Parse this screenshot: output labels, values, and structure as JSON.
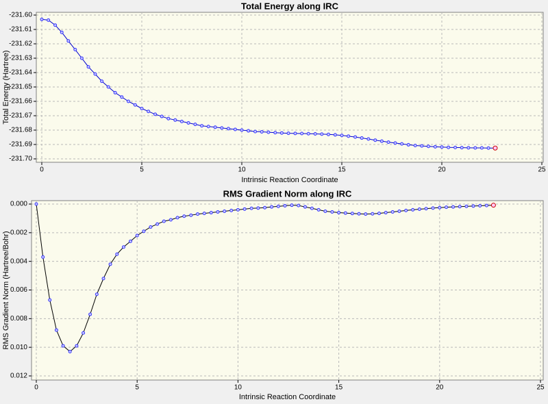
{
  "chart_data": [
    {
      "type": "line",
      "title": "Total Energy along IRC",
      "x_label": "Intrinsic Reaction Coordinate",
      "y_label": "Total Energy (Hartree)",
      "x": [
        0,
        0.33,
        0.67,
        1,
        1.33,
        1.67,
        2,
        2.33,
        2.67,
        3,
        3.33,
        3.67,
        4,
        4.33,
        4.67,
        5,
        5.33,
        5.67,
        6,
        6.33,
        6.67,
        7,
        7.33,
        7.67,
        8,
        8.33,
        8.67,
        9,
        9.33,
        9.67,
        10,
        10.33,
        10.67,
        11,
        11.33,
        11.67,
        12,
        12.33,
        12.67,
        13,
        13.33,
        13.67,
        14,
        14.33,
        14.67,
        15,
        15.33,
        15.67,
        16,
        16.33,
        16.67,
        17,
        17.33,
        17.67,
        18,
        18.33,
        18.67,
        19,
        19.33,
        19.67,
        20,
        20.33,
        20.67,
        21,
        21.33,
        21.67,
        22,
        22.33,
        22.67
      ],
      "series": [
        {
          "color": "#0000cc",
          "marker_color": "#3333ff",
          "last_marker_color": "#cc0000",
          "values": [
            -231.603,
            -231.6035,
            -231.607,
            -231.612,
            -231.618,
            -231.624,
            -231.63,
            -231.636,
            -231.641,
            -231.646,
            -231.65,
            -231.654,
            -231.657,
            -231.66,
            -231.6625,
            -231.665,
            -231.667,
            -231.669,
            -231.6705,
            -231.672,
            -231.673,
            -231.674,
            -231.675,
            -231.676,
            -231.677,
            -231.6775,
            -231.678,
            -231.6785,
            -231.679,
            -231.6795,
            -231.68,
            -231.6805,
            -231.681,
            -231.6812,
            -231.6815,
            -231.6818,
            -231.682,
            -231.6822,
            -231.6823,
            -231.6824,
            -231.6825,
            -231.6826,
            -231.6828,
            -231.683,
            -231.6833,
            -231.6837,
            -231.6842,
            -231.6848,
            -231.6855,
            -231.6862,
            -231.687,
            -231.6877,
            -231.6884,
            -231.689,
            -231.6896,
            -231.6902,
            -231.6907,
            -231.691,
            -231.6913,
            -231.6916,
            -231.6918,
            -231.692,
            -231.6921,
            -231.6922,
            -231.6923,
            -231.6924,
            -231.6924,
            -231.6925,
            -231.6925
          ]
        }
      ],
      "xlim": [
        0,
        25
      ],
      "xticks": [
        0,
        5,
        10,
        15,
        20,
        25
      ],
      "ylim": [
        -231.6,
        -231.7
      ],
      "yticks": [
        {
          "value": -231.6,
          "label": "-231.60"
        },
        -231.61,
        -231.62,
        -231.63,
        -231.64,
        -231.65,
        -231.66,
        -231.67,
        -231.68,
        -231.69,
        {
          "value": -231.7,
          "label": "-231.70"
        }
      ],
      "grid": true
    },
    {
      "type": "line",
      "title": "RMS Gradient Norm along IRC",
      "x_label": "Intrinsic Reaction Coordinate",
      "y_label": "RMS Gradient Norm (Hartree/Bohr)",
      "x": [
        0,
        0.33,
        0.67,
        1,
        1.33,
        1.67,
        2,
        2.33,
        2.67,
        3,
        3.33,
        3.67,
        4,
        4.33,
        4.67,
        5,
        5.33,
        5.67,
        6,
        6.33,
        6.67,
        7,
        7.33,
        7.67,
        8,
        8.33,
        8.67,
        9,
        9.33,
        9.67,
        10,
        10.33,
        10.67,
        11,
        11.33,
        11.67,
        12,
        12.33,
        12.67,
        13,
        13.33,
        13.67,
        14,
        14.33,
        14.67,
        15,
        15.33,
        15.67,
        16,
        16.33,
        16.67,
        17,
        17.33,
        17.67,
        18,
        18.33,
        18.67,
        19,
        19.33,
        19.67,
        20,
        20.33,
        20.67,
        21,
        21.33,
        21.67,
        22,
        22.33,
        22.67
      ],
      "series": [
        {
          "color": "#000000",
          "marker_color": "#3333ff",
          "last_marker_color": "#cc0000",
          "values": [
            0,
            0.0037,
            0.0067,
            0.0088,
            0.0099,
            0.0103,
            0.0099,
            0.009,
            0.0077,
            0.0063,
            0.0052,
            0.0042,
            0.0035,
            0.003,
            0.0026,
            0.0022,
            0.0019,
            0.0016,
            0.0014,
            0.0012,
            0.0011,
            0.00095,
            0.00085,
            0.00078,
            0.0007,
            0.00065,
            0.0006,
            0.00055,
            0.0005,
            0.00045,
            0.0004,
            0.00035,
            0.0003,
            0.00028,
            0.00025,
            0.0002,
            0.00016,
            0.00012,
            8e-05,
            0.0001,
            0.0002,
            0.0003,
            0.0004,
            0.0005,
            0.00055,
            0.0006,
            0.00063,
            0.00066,
            0.00068,
            0.0007,
            0.00068,
            0.00065,
            0.0006,
            0.00055,
            0.0005,
            0.00045,
            0.0004,
            0.00036,
            0.00032,
            0.00028,
            0.00025,
            0.00022,
            0.0002,
            0.00018,
            0.00016,
            0.00014,
            0.00012,
            0.0001,
            8e-05
          ]
        }
      ],
      "xlim": [
        0,
        25
      ],
      "xticks": [
        0,
        5,
        10,
        15,
        20,
        25
      ],
      "ylim": [
        0,
        0.012
      ],
      "yticks": [
        {
          "value": 0,
          "label": "0.000"
        },
        {
          "value": 0.002,
          "label": "0.002"
        },
        {
          "value": 0.004,
          "label": "0.004"
        },
        {
          "value": 0.006,
          "label": "0.006"
        },
        {
          "value": 0.008,
          "label": "0.008"
        },
        {
          "value": 0.01,
          "label": "0.010"
        },
        {
          "value": 0.012,
          "label": "0.012"
        }
      ],
      "grid": true
    }
  ]
}
